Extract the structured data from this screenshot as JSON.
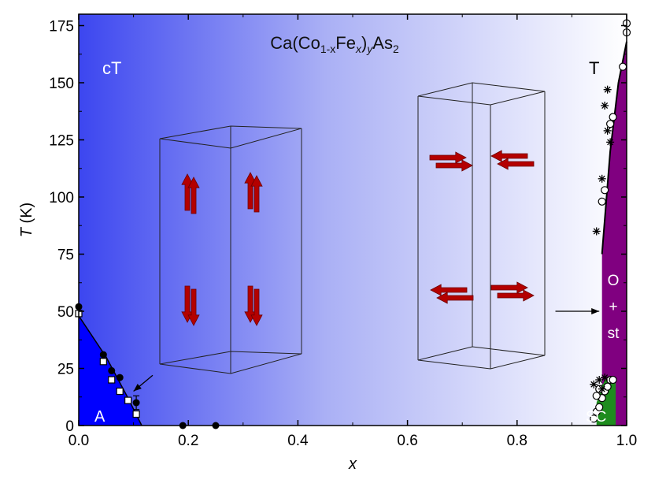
{
  "chart_data": {
    "type": "scatter",
    "title_parts": {
      "base": "Ca(Co",
      "sub1": "1-x",
      "mid1": "Fe",
      "sub2": "x",
      "mid2": ")",
      "sub3": "y",
      "mid3": "As",
      "sub4": "2"
    },
    "xlabel": "x",
    "ylabel_main": "T",
    "ylabel_unit": " (K)",
    "xlim": [
      0,
      1.0
    ],
    "ylim": [
      0,
      180
    ],
    "xticks": [
      0.0,
      0.2,
      0.4,
      0.6,
      0.8,
      1.0
    ],
    "xtick_labels": [
      "0.0",
      "0.2",
      "0.4",
      "0.6",
      "0.8",
      "1.0"
    ],
    "yticks": [
      0,
      25,
      50,
      75,
      100,
      125,
      150,
      175
    ],
    "ytick_labels": [
      "0",
      "25",
      "50",
      "75",
      "100",
      "125",
      "150",
      "175"
    ],
    "region_labels": {
      "cT": "cT",
      "T": "T",
      "A": "A",
      "SC": "SC",
      "ost_line1": "O",
      "ost_line2": "+",
      "ost_line3": "st"
    },
    "regions": {
      "A_boundary": [
        [
          0.0,
          48
        ],
        [
          0.05,
          30
        ],
        [
          0.09,
          12
        ],
        [
          0.115,
          0
        ]
      ],
      "purple_boundary": [
        [
          0.955,
          0
        ],
        [
          0.955,
          75
        ],
        [
          0.97,
          120
        ],
        [
          0.985,
          150
        ],
        [
          1.0,
          168
        ],
        [
          1.0,
          0
        ]
      ],
      "SC_boundary": [
        [
          0.945,
          0
        ],
        [
          0.945,
          10
        ],
        [
          0.96,
          20
        ],
        [
          0.97,
          20
        ],
        [
          0.97,
          0
        ]
      ],
      "SC_fill_right": [
        [
          0.955,
          0
        ],
        [
          0.955,
          18
        ],
        [
          0.98,
          20
        ],
        [
          0.98,
          0
        ]
      ]
    },
    "series": [
      {
        "marker": "filled-circle",
        "points": [
          [
            0.0,
            52
          ],
          [
            0.045,
            31
          ],
          [
            0.06,
            24
          ],
          [
            0.075,
            21
          ],
          [
            0.105,
            10
          ],
          [
            0.19,
            0
          ],
          [
            0.25,
            0
          ]
        ]
      },
      {
        "marker": "open-square",
        "points": [
          [
            0.0,
            49
          ],
          [
            0.045,
            28
          ],
          [
            0.06,
            20
          ],
          [
            0.075,
            15
          ],
          [
            0.09,
            11
          ],
          [
            0.105,
            5
          ]
        ]
      },
      {
        "marker": "open-circle",
        "points": [
          [
            0.955,
            98
          ],
          [
            0.96,
            103
          ],
          [
            0.97,
            132
          ],
          [
            0.975,
            135
          ],
          [
            0.993,
            157
          ],
          [
            1.0,
            172
          ],
          [
            1.0,
            176
          ],
          [
            0.94,
            3
          ],
          [
            0.945,
            6
          ],
          [
            0.95,
            8
          ],
          [
            0.955,
            12
          ],
          [
            0.96,
            15
          ],
          [
            0.965,
            17
          ],
          [
            0.97,
            20
          ],
          [
            0.975,
            20
          ],
          [
            0.95,
            16
          ],
          [
            0.945,
            13
          ]
        ]
      },
      {
        "marker": "asterisk",
        "points": [
          [
            0.96,
            140
          ],
          [
            0.965,
            147
          ],
          [
            0.965,
            129
          ],
          [
            0.97,
            124
          ],
          [
            0.945,
            85
          ],
          [
            0.955,
            108
          ],
          [
            0.94,
            18
          ],
          [
            0.95,
            20
          ],
          [
            0.955,
            16
          ],
          [
            0.96,
            21
          ]
        ]
      }
    ],
    "errorbar": {
      "x": 0.105,
      "y": 10,
      "err": 3
    },
    "arrows": [
      {
        "from": [
          0.135,
          22
        ],
        "to": [
          0.1,
          15
        ]
      },
      {
        "from": [
          0.87,
          50
        ],
        "to": [
          0.95,
          50
        ]
      }
    ],
    "colors": {
      "blue_region": "#0000ff",
      "gradient_left": "#3c46f0",
      "gradient_right": "#ffffff",
      "purple_region": "#800080",
      "sc_region": "#1e8c1e",
      "spin_arrow": "#b40000",
      "lattice_lines": "#222222"
    },
    "spin_cells": [
      {
        "orientation": "vertical",
        "arrows": [
          "up",
          "up",
          "down",
          "down"
        ]
      },
      {
        "orientation": "horizontal",
        "arrows": [
          "right",
          "left",
          "left",
          "right"
        ]
      }
    ]
  }
}
